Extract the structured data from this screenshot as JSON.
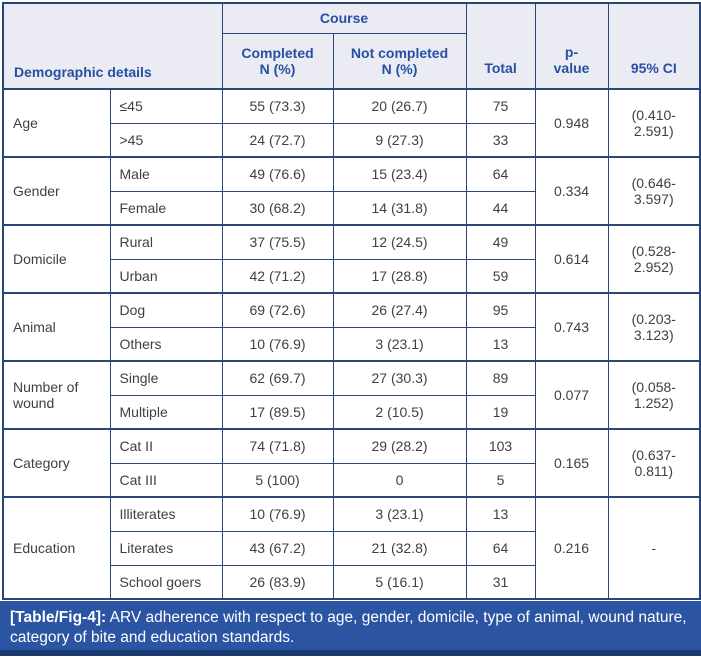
{
  "colors": {
    "border_navy": "#2a4577",
    "header_bg": "#ebecf3",
    "header_text_blue": "#2650a0",
    "body_text": "#404040",
    "caption_bg": "#2b54a3",
    "caption_bottom_strip": "#1b3a72",
    "caption_text": "#ffffff"
  },
  "header": {
    "demographic_label": "Demographic details",
    "course_label": "Course",
    "completed_label": "Completed\nN (%)",
    "not_completed_label": "Not completed\nN (%)",
    "total_label": "Total",
    "p_value_label": "p-\nvalue",
    "ci_label": "95% CI"
  },
  "groups": [
    {
      "category": "Age",
      "p_value": "0.948",
      "ci": "(0.410-\n2.591)",
      "rows": [
        {
          "label": "≤45",
          "completed": "55 (73.3)",
          "not_completed": "20 (26.7)",
          "total": "75"
        },
        {
          "label": ">45",
          "completed": "24 (72.7)",
          "not_completed": "9 (27.3)",
          "total": "33"
        }
      ]
    },
    {
      "category": "Gender",
      "p_value": "0.334",
      "ci": "(0.646-\n3.597)",
      "rows": [
        {
          "label": "Male",
          "completed": "49 (76.6)",
          "not_completed": "15 (23.4)",
          "total": "64"
        },
        {
          "label": "Female",
          "completed": "30 (68.2)",
          "not_completed": "14 (31.8)",
          "total": "44"
        }
      ]
    },
    {
      "category": "Domicile",
      "p_value": "0.614",
      "ci": "(0.528-\n2.952)",
      "rows": [
        {
          "label": "Rural",
          "completed": "37 (75.5)",
          "not_completed": "12 (24.5)",
          "total": "49"
        },
        {
          "label": "Urban",
          "completed": "42 (71.2)",
          "not_completed": "17 (28.8)",
          "total": "59"
        }
      ]
    },
    {
      "category": "Animal",
      "p_value": "0.743",
      "ci": "(0.203-\n3.123)",
      "rows": [
        {
          "label": "Dog",
          "completed": "69 (72.6)",
          "not_completed": "26 (27.4)",
          "total": "95"
        },
        {
          "label": "Others",
          "completed": "10 (76.9)",
          "not_completed": "3 (23.1)",
          "total": "13"
        }
      ]
    },
    {
      "category": "Number of wound",
      "p_value": "0.077",
      "ci": "(0.058-\n1.252)",
      "rows": [
        {
          "label": "Single",
          "completed": "62 (69.7)",
          "not_completed": "27 (30.3)",
          "total": "89"
        },
        {
          "label": "Multiple",
          "completed": "17 (89.5)",
          "not_completed": "2 (10.5)",
          "total": "19"
        }
      ]
    },
    {
      "category": "Category",
      "p_value": "0.165",
      "ci": "(0.637-\n0.811)",
      "rows": [
        {
          "label": "Cat II",
          "completed": "74 (71.8)",
          "not_completed": "29 (28.2)",
          "total": "103"
        },
        {
          "label": "Cat III",
          "completed": "5 (100)",
          "not_completed": "0",
          "total": "5"
        }
      ]
    },
    {
      "category": "Education",
      "p_value": "0.216",
      "ci": "-",
      "rows": [
        {
          "label": "Illiterates",
          "completed": "10 (76.9)",
          "not_completed": "3 (23.1)",
          "total": "13"
        },
        {
          "label": "Literates",
          "completed": "43 (67.2)",
          "not_completed": "21 (32.8)",
          "total": "64"
        },
        {
          "label": "School goers",
          "completed": "26 (83.9)",
          "not_completed": "5 (16.1)",
          "total": "31"
        }
      ]
    }
  ],
  "caption": {
    "label": "[Table/Fig-4]:",
    "text": "ARV adherence with respect to age, gender, domicile, type of animal, wound nature, category of bite and education standards."
  }
}
